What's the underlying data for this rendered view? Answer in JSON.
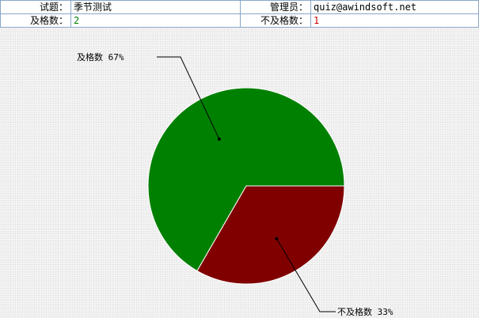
{
  "info": {
    "quiz_label": "试题：",
    "quiz_value": "季节测试",
    "admin_label": "管理员：",
    "admin_value": "quiz@awindsoft.net",
    "pass_label": "及格数：",
    "pass_value": "2",
    "fail_label": "不及格数：",
    "fail_value": "1"
  },
  "chart_data": {
    "type": "pie",
    "slices": [
      {
        "label": "及格数 67%",
        "value": 2,
        "color": "#008000"
      },
      {
        "label": "不及格数 33%",
        "value": 1,
        "color": "#800000"
      }
    ]
  }
}
